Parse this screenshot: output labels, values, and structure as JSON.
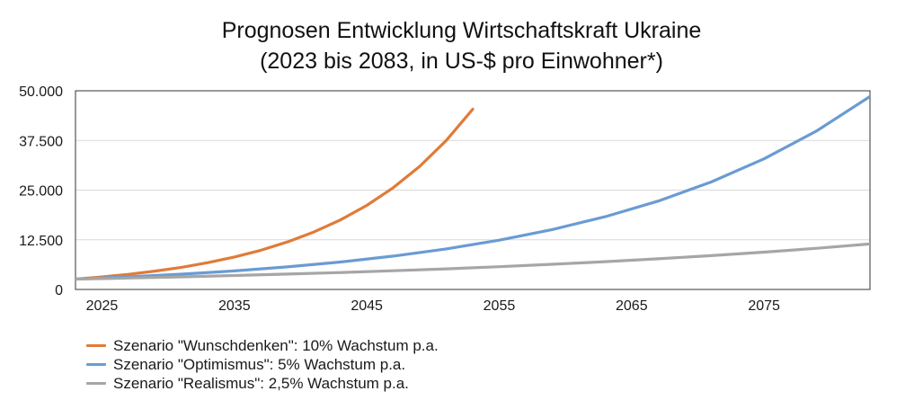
{
  "chart_data": {
    "type": "line",
    "title": "Prognosen Entwicklung Wirtschaftskraft Ukraine",
    "subtitle": "(2023 bis 2083, in US-$ pro Einwohner*)",
    "xlabel": "",
    "ylabel": "",
    "xlim": [
      2023,
      2083
    ],
    "ylim": [
      0,
      50000
    ],
    "x_ticks": [
      2025,
      2035,
      2045,
      2055,
      2065,
      2075
    ],
    "x_tick_labels": [
      "2025",
      "2035",
      "2045",
      "2055",
      "2065",
      "2075"
    ],
    "y_ticks": [
      0,
      12500,
      25000,
      37500,
      50000
    ],
    "y_tick_labels": [
      "0",
      "12.500",
      "25.000",
      "37.500",
      "50.000"
    ],
    "grid": "horizontal",
    "legend_position": "bottom-left",
    "series": [
      {
        "name": "Szenario \"Wunschdenken\": 10% Wachstum p.a.",
        "color": "#E07B39",
        "x": [
          2023,
          2025,
          2027,
          2029,
          2031,
          2033,
          2035,
          2037,
          2039,
          2041,
          2043,
          2045,
          2047,
          2049,
          2051,
          2053
        ],
        "y": [
          2600,
          3146,
          3807,
          4606,
          5573,
          6744,
          8160,
          9874,
          11947,
          14456,
          17492,
          21165,
          25610,
          30988,
          37495,
          45369
        ]
      },
      {
        "name": "Szenario \"Optimismus\": 5% Wachstum p.a.",
        "color": "#6A9BD3",
        "x": [
          2023,
          2027,
          2031,
          2035,
          2039,
          2043,
          2047,
          2051,
          2055,
          2059,
          2063,
          2067,
          2071,
          2075,
          2079,
          2083
        ],
        "y": [
          2600,
          3160,
          3841,
          4669,
          5676,
          6899,
          8386,
          10193,
          12390,
          15060,
          18306,
          22251,
          27047,
          32876,
          39961,
          48574
        ]
      },
      {
        "name": "Szenario \"Realismus\": 2,5% Wachstum p.a.",
        "color": "#A6A6A6",
        "x": [
          2023,
          2027,
          2031,
          2035,
          2039,
          2043,
          2047,
          2051,
          2055,
          2059,
          2063,
          2067,
          2071,
          2075,
          2079,
          2083
        ],
        "y": [
          2600,
          2870,
          3168,
          3497,
          3860,
          4260,
          4703,
          5191,
          5730,
          6325,
          6981,
          7706,
          8506,
          9389,
          10364,
          11440
        ]
      }
    ]
  }
}
